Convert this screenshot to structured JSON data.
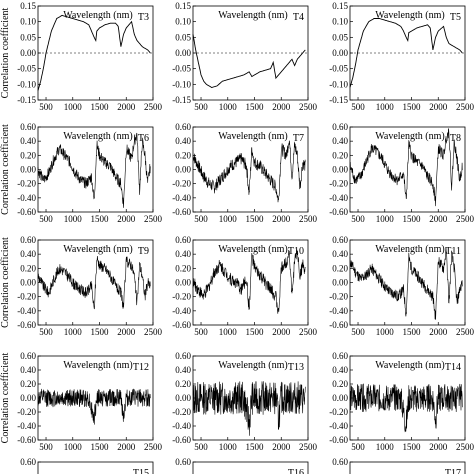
{
  "chart_data": [
    {
      "type": "line",
      "title": "T3",
      "xlabel": "Wavelength (nm)",
      "ylabel": "Correlation coefficient",
      "xlim": [
        350,
        2500
      ],
      "ylim": [
        -0.15,
        0.15
      ],
      "xticks": [
        "500",
        "1000",
        "1500",
        "2000",
        "2500"
      ],
      "yticks": [
        "-0.15",
        "-0.10",
        "-0.05",
        "0.00",
        "0.05",
        "0.10",
        "0.15"
      ],
      "zero_line": true,
      "x": [
        350,
        400,
        450,
        500,
        600,
        700,
        800,
        900,
        1000,
        1100,
        1200,
        1300,
        1350,
        1400,
        1430,
        1450,
        1500,
        1600,
        1700,
        1800,
        1850,
        1900,
        1950,
        2000,
        2100,
        2150,
        2200,
        2300,
        2400,
        2450
      ],
      "y": [
        -0.12,
        -0.09,
        -0.05,
        0.0,
        0.07,
        0.11,
        0.12,
        0.115,
        0.11,
        0.105,
        0.1,
        0.09,
        0.07,
        0.05,
        0.04,
        0.07,
        0.08,
        0.09,
        0.095,
        0.095,
        0.085,
        0.02,
        0.06,
        0.08,
        0.1,
        0.06,
        0.04,
        0.02,
        0.01,
        0.0
      ]
    },
    {
      "type": "line",
      "title": "T4",
      "xlabel": "Wavelength (nm)",
      "ylabel": "",
      "xlim": [
        350,
        2500
      ],
      "ylim": [
        -0.15,
        0.15
      ],
      "xticks": [
        "500",
        "1000",
        "1500",
        "2000",
        "2500"
      ],
      "yticks": [
        "-0.15",
        "-0.10",
        "-0.05",
        "0.00",
        "0.05",
        "0.10",
        "0.15"
      ],
      "zero_line": true,
      "x": [
        350,
        400,
        450,
        500,
        550,
        600,
        700,
        800,
        900,
        1000,
        1100,
        1200,
        1300,
        1350,
        1400,
        1450,
        1500,
        1600,
        1700,
        1800,
        1850,
        1900,
        1950,
        2000,
        2100,
        2200,
        2250,
        2300,
        2400,
        2450
      ],
      "y": [
        0.06,
        0.01,
        -0.03,
        -0.07,
        -0.09,
        -0.1,
        -0.11,
        -0.105,
        -0.09,
        -0.085,
        -0.08,
        -0.075,
        -0.07,
        -0.065,
        -0.06,
        -0.075,
        -0.07,
        -0.06,
        -0.055,
        -0.05,
        -0.03,
        -0.08,
        -0.07,
        -0.06,
        -0.04,
        -0.02,
        -0.04,
        -0.02,
        0.0,
        0.01
      ]
    },
    {
      "type": "line",
      "title": "T5",
      "xlabel": "Wavelength (nm)",
      "ylabel": "",
      "xlim": [
        350,
        2500
      ],
      "ylim": [
        -0.15,
        0.15
      ],
      "xticks": [
        "500",
        "1000",
        "1500",
        "2000",
        "2500"
      ],
      "yticks": [
        "-0.15",
        "-0.10",
        "-0.05",
        "0.00",
        "0.05",
        "0.10",
        "0.15"
      ],
      "zero_line": true,
      "x": [
        350,
        400,
        450,
        500,
        600,
        700,
        800,
        900,
        1000,
        1100,
        1200,
        1300,
        1350,
        1400,
        1430,
        1450,
        1500,
        1600,
        1700,
        1800,
        1850,
        1900,
        1950,
        2000,
        2100,
        2150,
        2200,
        2300,
        2400,
        2450
      ],
      "y": [
        -0.11,
        -0.08,
        -0.04,
        0.01,
        0.07,
        0.1,
        0.11,
        0.11,
        0.105,
        0.1,
        0.095,
        0.085,
        0.07,
        0.05,
        0.04,
        0.065,
        0.07,
        0.08,
        0.085,
        0.09,
        0.08,
        0.01,
        0.05,
        0.07,
        0.085,
        0.05,
        0.03,
        0.02,
        0.01,
        0.0
      ]
    },
    {
      "type": "line",
      "title": "T6",
      "xlabel": "Wavelength (nm)",
      "ylabel": "Correlation coefficient",
      "xlim": [
        350,
        2500
      ],
      "ylim": [
        -0.6,
        0.6
      ],
      "xticks": [
        "500",
        "1000",
        "1500",
        "2000",
        "2500"
      ],
      "yticks": [
        "-0.60",
        "-0.40",
        "-0.20",
        "0.00",
        "0.20",
        "0.40",
        "0.60"
      ],
      "zero_line": false,
      "noisy": true,
      "noise": 0.08,
      "x": [
        350,
        450,
        550,
        650,
        750,
        850,
        950,
        1050,
        1150,
        1250,
        1350,
        1400,
        1450,
        1500,
        1600,
        1700,
        1800,
        1900,
        1950,
        2000,
        2100,
        2150,
        2200,
        2250,
        2300,
        2350,
        2400,
        2450
      ],
      "y": [
        0.0,
        -0.15,
        -0.05,
        0.15,
        0.3,
        0.2,
        0.1,
        -0.05,
        -0.15,
        -0.2,
        -0.1,
        -0.45,
        0.35,
        0.2,
        0.1,
        0.05,
        -0.1,
        -0.2,
        -0.5,
        0.3,
        0.15,
        0.4,
        0.5,
        -0.3,
        0.4,
        0.2,
        -0.2,
        0.05
      ]
    },
    {
      "type": "line",
      "title": "T7",
      "xlabel": "Wavelength (nm)",
      "ylabel": "",
      "xlim": [
        350,
        2500
      ],
      "ylim": [
        -0.6,
        0.6
      ],
      "xticks": [
        "500",
        "1000",
        "1500",
        "2000",
        "2500"
      ],
      "yticks": [
        "-0.60",
        "-0.40",
        "-0.20",
        "0.00",
        "0.20",
        "0.40",
        "0.60"
      ],
      "zero_line": false,
      "noisy": true,
      "noise": 0.09,
      "x": [
        350,
        450,
        550,
        650,
        750,
        850,
        950,
        1050,
        1150,
        1250,
        1350,
        1400,
        1450,
        1500,
        1600,
        1700,
        1800,
        1900,
        1950,
        2000,
        2100,
        2150,
        2200,
        2250,
        2300,
        2350,
        2400,
        2450
      ],
      "y": [
        0.2,
        0.05,
        -0.1,
        -0.2,
        -0.25,
        -0.15,
        -0.05,
        0.05,
        0.1,
        0.15,
        0.05,
        -0.35,
        0.3,
        0.1,
        0.05,
        -0.05,
        -0.15,
        -0.25,
        -0.45,
        0.3,
        0.2,
        0.45,
        -0.1,
        0.35,
        0.2,
        -0.25,
        0.1,
        0.05
      ]
    },
    {
      "type": "line",
      "title": "T8",
      "xlabel": "Wavelength (nm)",
      "ylabel": "",
      "xlim": [
        350,
        2500
      ],
      "ylim": [
        -0.6,
        0.6
      ],
      "xticks": [
        "500",
        "1000",
        "1500",
        "2000",
        "2500"
      ],
      "yticks": [
        "-0.60",
        "-0.40",
        "-0.20",
        "0.00",
        "0.20",
        "0.40",
        "0.60"
      ],
      "zero_line": false,
      "noisy": true,
      "noise": 0.08,
      "x": [
        350,
        450,
        550,
        650,
        750,
        850,
        950,
        1050,
        1150,
        1250,
        1350,
        1400,
        1450,
        1500,
        1600,
        1700,
        1800,
        1900,
        1950,
        2000,
        2100,
        2150,
        2200,
        2250,
        2300,
        2350,
        2400,
        2450
      ],
      "y": [
        0.05,
        -0.15,
        -0.1,
        0.1,
        0.3,
        0.25,
        0.15,
        0.0,
        -0.1,
        -0.15,
        -0.05,
        -0.45,
        0.35,
        0.2,
        0.1,
        0.05,
        -0.1,
        -0.2,
        -0.45,
        0.3,
        0.2,
        0.45,
        0.55,
        -0.25,
        0.4,
        0.15,
        -0.15,
        0.05
      ]
    },
    {
      "type": "line",
      "title": "T9",
      "xlabel": "Wavelength (nm)",
      "ylabel": "Correlation coefficient",
      "xlim": [
        350,
        2500
      ],
      "ylim": [
        -0.6,
        0.6
      ],
      "xticks": [
        "500",
        "1000",
        "1500",
        "2000",
        "2500"
      ],
      "yticks": [
        "-0.60",
        "-0.40",
        "-0.20",
        "0.00",
        "0.20",
        "0.40",
        "0.60"
      ],
      "zero_line": false,
      "noisy": true,
      "noise": 0.08,
      "x": [
        350,
        450,
        550,
        650,
        750,
        850,
        950,
        1050,
        1150,
        1250,
        1350,
        1400,
        1450,
        1500,
        1600,
        1700,
        1800,
        1900,
        1950,
        2000,
        2100,
        2150,
        2200,
        2250,
        2300,
        2350,
        2400,
        2450
      ],
      "y": [
        0.1,
        -0.05,
        -0.15,
        0.05,
        0.2,
        0.15,
        0.05,
        -0.05,
        -0.1,
        -0.15,
        -0.05,
        -0.4,
        0.35,
        0.25,
        0.2,
        0.1,
        -0.05,
        -0.15,
        -0.35,
        0.3,
        0.25,
        0.1,
        -0.3,
        0.25,
        0.1,
        -0.2,
        0.0,
        -0.05
      ]
    },
    {
      "type": "line",
      "title": "T10",
      "xlabel": "Wavelength (nm)",
      "ylabel": "",
      "xlim": [
        350,
        2500
      ],
      "ylim": [
        -0.6,
        0.6
      ],
      "xticks": [
        "500",
        "1000",
        "1500",
        "2000",
        "2500"
      ],
      "yticks": [
        "-0.60",
        "-0.40",
        "-0.20",
        "0.00",
        "0.20",
        "0.40",
        "0.60"
      ],
      "zero_line": false,
      "noisy": true,
      "noise": 0.09,
      "x": [
        350,
        450,
        550,
        650,
        750,
        850,
        950,
        1050,
        1150,
        1250,
        1350,
        1400,
        1450,
        1500,
        1600,
        1700,
        1800,
        1900,
        1950,
        2000,
        2100,
        2150,
        2200,
        2250,
        2300,
        2350,
        2400,
        2450
      ],
      "y": [
        0.0,
        -0.1,
        -0.2,
        -0.05,
        0.15,
        0.25,
        0.15,
        0.05,
        0.0,
        -0.1,
        0.05,
        -0.4,
        0.4,
        0.2,
        0.1,
        0.0,
        -0.1,
        -0.2,
        -0.45,
        0.2,
        0.3,
        0.45,
        -0.2,
        0.3,
        0.45,
        0.1,
        0.25,
        0.15
      ]
    },
    {
      "type": "line",
      "title": "T11",
      "xlabel": "Wavelength (nm)",
      "ylabel": "",
      "xlim": [
        350,
        2500
      ],
      "ylim": [
        -0.6,
        0.6
      ],
      "xticks": [
        "500",
        "1000",
        "1500",
        "2000",
        "2500"
      ],
      "yticks": [
        "-0.60",
        "-0.40",
        "-0.20",
        "0.00",
        "0.20",
        "0.40",
        "0.60"
      ],
      "zero_line": false,
      "noisy": true,
      "noise": 0.08,
      "x": [
        350,
        450,
        550,
        650,
        750,
        850,
        950,
        1050,
        1150,
        1250,
        1350,
        1400,
        1450,
        1500,
        1600,
        1700,
        1800,
        1900,
        1950,
        2000,
        2100,
        2150,
        2200,
        2250,
        2300,
        2350,
        2400,
        2450
      ],
      "y": [
        0.3,
        0.15,
        0.05,
        0.1,
        0.2,
        0.1,
        0.0,
        -0.1,
        -0.15,
        -0.2,
        -0.1,
        -0.45,
        0.35,
        0.2,
        0.1,
        0.0,
        -0.1,
        -0.2,
        -0.5,
        0.3,
        0.2,
        0.45,
        -0.3,
        0.4,
        0.2,
        -0.3,
        -0.1,
        0.0
      ]
    },
    {
      "type": "line",
      "title": "T12",
      "xlabel": "Wavelength (nm)",
      "ylabel": "Correlation coefficient",
      "xlim": [
        350,
        2500
      ],
      "ylim": [
        -0.6,
        0.6
      ],
      "xticks": [
        "500",
        "1000",
        "1500",
        "2000",
        "2500"
      ],
      "yticks": [
        "-0.60",
        "-0.40",
        "-0.20",
        "0.00",
        "0.20",
        "0.40",
        "0.60"
      ],
      "zero_line": false,
      "noisy": true,
      "noise": 0.13,
      "x": [
        350,
        800,
        1300,
        1400,
        1450,
        1500,
        1900,
        1950,
        2000,
        2450
      ],
      "y": [
        0.0,
        0.0,
        0.0,
        -0.3,
        0.0,
        0.0,
        0.0,
        -0.25,
        0.0,
        0.0
      ]
    },
    {
      "type": "line",
      "title": "T13",
      "xlabel": "Wavelength (nm)",
      "ylabel": "",
      "xlim": [
        350,
        2500
      ],
      "ylim": [
        -0.6,
        0.6
      ],
      "xticks": [
        "500",
        "1000",
        "1500",
        "2000",
        "2500"
      ],
      "yticks": [
        "-0.60",
        "-0.40",
        "-0.20",
        "0.00",
        "0.20",
        "0.40",
        "0.60"
      ],
      "zero_line": false,
      "noisy": true,
      "noise": 0.24,
      "x": [
        350,
        800,
        1300,
        1400,
        1450,
        1500,
        1900,
        1950,
        2000,
        2450
      ],
      "y": [
        0.0,
        0.0,
        0.0,
        -0.35,
        0.0,
        0.0,
        0.0,
        -0.3,
        0.0,
        0.0
      ]
    },
    {
      "type": "line",
      "title": "T14",
      "xlabel": "Wavelength (nm)",
      "ylabel": "",
      "xlim": [
        350,
        2500
      ],
      "ylim": [
        -0.6,
        0.6
      ],
      "xticks": [
        "500",
        "1000",
        "1500",
        "2000",
        "2500"
      ],
      "yticks": [
        "-0.60",
        "-0.40",
        "-0.20",
        "0.00",
        "0.20",
        "0.40",
        "0.60"
      ],
      "zero_line": false,
      "noisy": true,
      "noise": 0.2,
      "x": [
        350,
        800,
        1300,
        1400,
        1450,
        1500,
        1900,
        1950,
        2000,
        2450
      ],
      "y": [
        0.0,
        0.0,
        0.0,
        -0.4,
        0.0,
        0.0,
        0.0,
        -0.3,
        0.0,
        0.0
      ]
    },
    {
      "type": "line",
      "title": "T15",
      "xlabel": "",
      "ylabel": "",
      "partial": true,
      "xlim": [
        350,
        2500
      ],
      "ylim": [
        -0.6,
        0.6
      ],
      "xticks": [],
      "yticks": [
        "0.60"
      ]
    },
    {
      "type": "line",
      "title": "T16",
      "xlabel": "",
      "ylabel": "",
      "partial": true,
      "xlim": [
        350,
        2500
      ],
      "ylim": [
        -0.6,
        0.6
      ],
      "xticks": [],
      "yticks": [
        "0.60"
      ]
    },
    {
      "type": "line",
      "title": "T17",
      "xlabel": "",
      "ylabel": "",
      "partial": true,
      "xlim": [
        350,
        2500
      ],
      "ylim": [
        -0.6,
        0.6
      ],
      "xticks": [],
      "yticks": [
        "0.60"
      ]
    }
  ]
}
